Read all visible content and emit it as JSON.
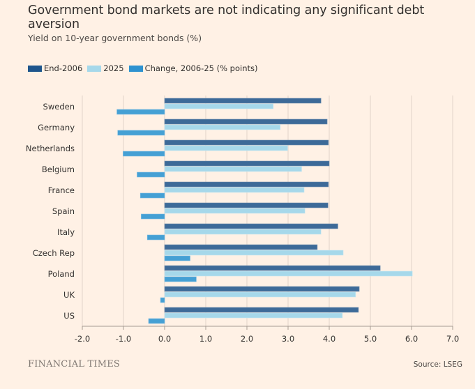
{
  "header": {
    "title": "Government bond markets are not indicating any significant debt aversion",
    "subtitle": "Yield on 10-year government bonds (%)"
  },
  "legend": [
    {
      "label": "End-2006",
      "color": "#1e558c"
    },
    {
      "label": "2025",
      "color": "#a6d8ea"
    },
    {
      "label": "Change, 2006-25 (% points)",
      "color": "#2e92d0"
    }
  ],
  "footer": {
    "brand": "FINANCIAL TIMES",
    "source": "Source: LSEG"
  },
  "chart_data": {
    "type": "bar",
    "orientation": "horizontal",
    "title": "Government bond markets are not indicating any significant debt aversion",
    "subtitle": "Yield on 10-year government bonds (%)",
    "xlabel": "",
    "ylabel": "",
    "xlim": [
      -2.0,
      7.0
    ],
    "xticks": [
      -2.0,
      -1.0,
      0.0,
      1.0,
      2.0,
      3.0,
      4.0,
      5.0,
      6.0,
      7.0
    ],
    "xtick_labels": [
      "-2.0",
      "-1.0",
      "0.0",
      "1.0",
      "2.0",
      "3.0",
      "4.0",
      "5.0",
      "6.0",
      "7.0"
    ],
    "grid": "vertical",
    "legend_position": "top-left",
    "categories": [
      "Sweden",
      "Germany",
      "Netherlands",
      "Belgium",
      "France",
      "Spain",
      "Italy",
      "Czech Rep",
      "Poland",
      "UK",
      "US"
    ],
    "series": [
      {
        "name": "End-2006",
        "color": "#3d6a98",
        "values": [
          3.8,
          3.95,
          3.98,
          4.0,
          3.98,
          3.97,
          4.21,
          3.71,
          5.24,
          4.73,
          4.71
        ]
      },
      {
        "name": "2025",
        "color": "#a6d8ea",
        "values": [
          2.64,
          2.81,
          2.99,
          3.33,
          3.39,
          3.41,
          3.8,
          4.34,
          6.02,
          4.64,
          4.32
        ]
      },
      {
        "name": "Change, 2006-25 (% points)",
        "color": "#45a0d4",
        "values": [
          -1.16,
          -1.14,
          -1.01,
          -0.67,
          -0.59,
          -0.57,
          -0.42,
          0.62,
          0.77,
          -0.1,
          -0.39
        ]
      }
    ],
    "source": "Source: LSEG"
  }
}
